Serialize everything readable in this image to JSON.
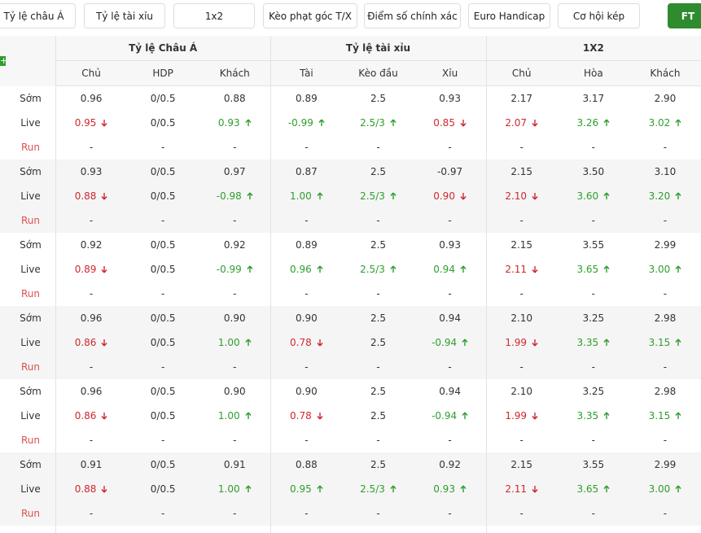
{
  "tabs": [
    "Tỷ lệ châu Á",
    "Tỷ lệ tài xỉu",
    "1x2",
    "Kèo phạt góc T/X",
    "Điểm số chính xác",
    "Euro Handicap",
    "Cơ hội kép",
    "FT"
  ],
  "table": {
    "groups": [
      "Tỷ lệ Châu Á",
      "Tỷ lệ tài xỉu",
      "1X2"
    ],
    "columns": [
      "Chủ",
      "HDP",
      "Khách",
      "Tài",
      "Kèo đầu",
      "Xỉu",
      "Chủ",
      "Hòa",
      "Khách"
    ],
    "blocks": [
      {
        "rows": [
          {
            "label": "Sớm",
            "cells": [
              "0.96",
              "0/0.5",
              "0.88",
              "0.89",
              "2.5",
              "0.93",
              "2.17",
              "3.17",
              "2.90"
            ]
          },
          {
            "label": "Live",
            "cells": [
              {
                "text": "0.95",
                "trend": "down"
              },
              "0/0.5",
              {
                "text": "0.93",
                "trend": "up"
              },
              {
                "text": "-0.99",
                "trend": "up"
              },
              {
                "text": "2.5/3",
                "trend": "up"
              },
              {
                "text": "0.85",
                "trend": "down"
              },
              {
                "text": "2.07",
                "trend": "down"
              },
              {
                "text": "3.26",
                "trend": "up"
              },
              {
                "text": "3.02",
                "trend": "up"
              }
            ]
          },
          {
            "label": "Run",
            "cells": [
              "-",
              "-",
              "-",
              "-",
              "-",
              "-",
              "-",
              "-",
              "-"
            ]
          }
        ]
      },
      {
        "rows": [
          {
            "label": "Sớm",
            "cells": [
              "0.93",
              "0/0.5",
              "0.97",
              "0.87",
              "2.5",
              "-0.97",
              "2.15",
              "3.50",
              "3.10"
            ]
          },
          {
            "label": "Live",
            "cells": [
              {
                "text": "0.88",
                "trend": "down"
              },
              "0/0.5",
              {
                "text": "-0.98",
                "trend": "up"
              },
              {
                "text": "1.00",
                "trend": "up"
              },
              {
                "text": "2.5/3",
                "trend": "up"
              },
              {
                "text": "0.90",
                "trend": "down"
              },
              {
                "text": "2.10",
                "trend": "down"
              },
              {
                "text": "3.60",
                "trend": "up"
              },
              {
                "text": "3.20",
                "trend": "up"
              }
            ]
          },
          {
            "label": "Run",
            "cells": [
              "-",
              "-",
              "-",
              "-",
              "-",
              "-",
              "-",
              "-",
              "-"
            ]
          }
        ]
      },
      {
        "rows": [
          {
            "label": "Sớm",
            "cells": [
              "0.92",
              "0/0.5",
              "0.92",
              "0.89",
              "2.5",
              "0.93",
              "2.15",
              "3.55",
              "2.99"
            ]
          },
          {
            "label": "Live",
            "cells": [
              {
                "text": "0.89",
                "trend": "down"
              },
              "0/0.5",
              {
                "text": "-0.99",
                "trend": "up"
              },
              {
                "text": "0.96",
                "trend": "up"
              },
              {
                "text": "2.5/3",
                "trend": "up"
              },
              {
                "text": "0.94",
                "trend": "up"
              },
              {
                "text": "2.11",
                "trend": "down"
              },
              {
                "text": "3.65",
                "trend": "up"
              },
              {
                "text": "3.00",
                "trend": "up"
              }
            ]
          },
          {
            "label": "Run",
            "cells": [
              "-",
              "-",
              "-",
              "-",
              "-",
              "-",
              "-",
              "-",
              "-"
            ]
          }
        ]
      },
      {
        "rows": [
          {
            "label": "Sớm",
            "cells": [
              "0.96",
              "0/0.5",
              "0.90",
              "0.90",
              "2.5",
              "0.94",
              "2.10",
              "3.25",
              "2.98"
            ]
          },
          {
            "label": "Live",
            "cells": [
              {
                "text": "0.86",
                "trend": "down"
              },
              "0/0.5",
              {
                "text": "1.00",
                "trend": "up"
              },
              {
                "text": "0.78",
                "trend": "down"
              },
              "2.5",
              {
                "text": "-0.94",
                "trend": "up"
              },
              {
                "text": "1.99",
                "trend": "down"
              },
              {
                "text": "3.35",
                "trend": "up"
              },
              {
                "text": "3.15",
                "trend": "up"
              }
            ]
          },
          {
            "label": "Run",
            "cells": [
              "-",
              "-",
              "-",
              "-",
              "-",
              "-",
              "-",
              "-",
              "-"
            ]
          }
        ]
      },
      {
        "rows": [
          {
            "label": "Sớm",
            "cells": [
              "0.96",
              "0/0.5",
              "0.90",
              "0.90",
              "2.5",
              "0.94",
              "2.10",
              "3.25",
              "2.98"
            ]
          },
          {
            "label": "Live",
            "cells": [
              {
                "text": "0.86",
                "trend": "down"
              },
              "0/0.5",
              {
                "text": "1.00",
                "trend": "up"
              },
              {
                "text": "0.78",
                "trend": "down"
              },
              "2.5",
              {
                "text": "-0.94",
                "trend": "up"
              },
              {
                "text": "1.99",
                "trend": "down"
              },
              {
                "text": "3.35",
                "trend": "up"
              },
              {
                "text": "3.15",
                "trend": "up"
              }
            ]
          },
          {
            "label": "Run",
            "cells": [
              "-",
              "-",
              "-",
              "-",
              "-",
              "-",
              "-",
              "-",
              "-"
            ]
          }
        ]
      },
      {
        "rows": [
          {
            "label": "Sớm",
            "cells": [
              "0.91",
              "0/0.5",
              "0.91",
              "0.88",
              "2.5",
              "0.92",
              "2.15",
              "3.55",
              "2.99"
            ]
          },
          {
            "label": "Live",
            "cells": [
              {
                "text": "0.88",
                "trend": "down"
              },
              "0/0.5",
              {
                "text": "1.00",
                "trend": "up"
              },
              {
                "text": "0.95",
                "trend": "up"
              },
              {
                "text": "2.5/3",
                "trend": "up"
              },
              {
                "text": "0.93",
                "trend": "up"
              },
              {
                "text": "2.11",
                "trend": "down"
              },
              {
                "text": "3.65",
                "trend": "up"
              },
              {
                "text": "3.00",
                "trend": "up"
              }
            ]
          },
          {
            "label": "Run",
            "cells": [
              "-",
              "-",
              "-",
              "-",
              "-",
              "-",
              "-",
              "-",
              "-"
            ]
          }
        ]
      }
    ]
  }
}
